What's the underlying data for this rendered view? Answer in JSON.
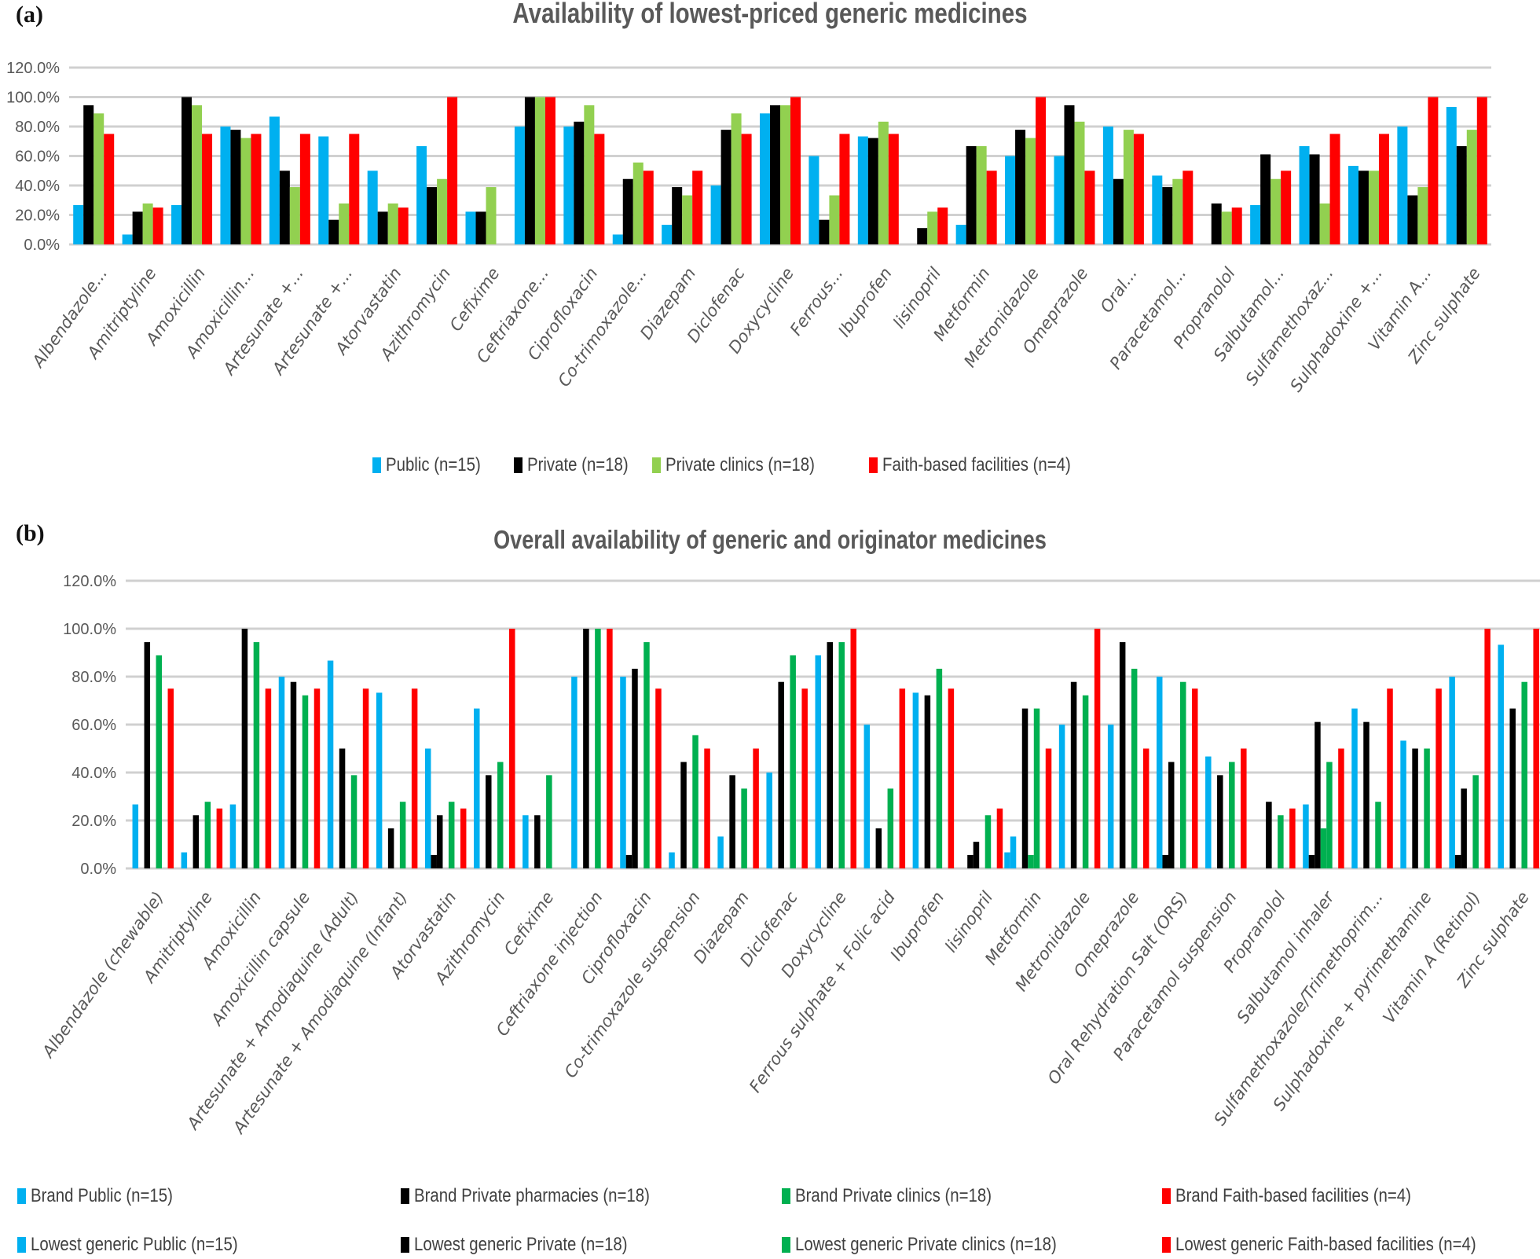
{
  "panels": {
    "a_label": "(a)",
    "b_label": "(b)"
  },
  "chart_data": [
    {
      "type": "bar",
      "title": "Availability of lowest-priced generic medicines",
      "xlabel": "",
      "ylabel": "",
      "ylim": [
        0,
        120
      ],
      "yticks": [
        "0.0%",
        "20.0%",
        "40.0%",
        "60.0%",
        "80.0%",
        "100.0%",
        "120.0%"
      ],
      "grid": true,
      "legend_position": "bottom",
      "categories": [
        "Albendazole...",
        "Amitriptyline",
        "Amoxicillin",
        "Amoxicillin...",
        "Artesunate +...",
        "Artesunate +...",
        "Atorvastatin",
        "Azithromycin",
        "Cefixime",
        "Ceftriaxone...",
        "Ciprofloxacin",
        "Co-trimoxazole...",
        "Diazepam",
        "Diclofenac",
        "Doxycycline",
        "Ferrous...",
        "Ibuprofen",
        "lisinopril",
        "Metformin",
        "Metronidazole",
        "Omeprazole",
        "Oral...",
        "Paracetamol...",
        "Propranolol",
        "Salbutamol...",
        "Sulfamethoxaz...",
        "Sulphadoxine +...",
        "Vitamin A...",
        "Zinc sulphate"
      ],
      "series": [
        {
          "name": "Public (n=15)",
          "color": "#00b0f0",
          "values": [
            26.7,
            6.7,
            26.7,
            80,
            86.7,
            73.3,
            50,
            66.7,
            22.2,
            80,
            80,
            6.7,
            13.3,
            40,
            88.9,
            60,
            73.3,
            0,
            13.3,
            60,
            60,
            80,
            46.7,
            0,
            26.7,
            66.7,
            53.3,
            80,
            93.3
          ]
        },
        {
          "name": "Private (n=18)",
          "color": "#000000",
          "values": [
            94.4,
            22.2,
            100,
            77.8,
            50,
            16.7,
            22.2,
            38.9,
            22.2,
            100,
            83.3,
            44.4,
            38.9,
            77.8,
            94.4,
            16.7,
            72.2,
            11.1,
            66.7,
            77.8,
            94.4,
            44.4,
            38.9,
            27.8,
            61.1,
            61.1,
            50,
            33.3,
            66.7
          ]
        },
        {
          "name": "Private clinics (n=18)",
          "color": "#92d050",
          "values": [
            88.9,
            27.8,
            94.4,
            72.2,
            38.9,
            27.8,
            27.8,
            44.4,
            38.9,
            100,
            94.4,
            55.6,
            33.3,
            88.9,
            94.4,
            33.3,
            83.3,
            22.2,
            66.7,
            72.2,
            83.3,
            77.8,
            44.4,
            22.2,
            44.4,
            27.8,
            50,
            38.9,
            77.8
          ]
        },
        {
          "name": "Faith-based facilities (n=4)",
          "color": "#ff0000",
          "values": [
            75,
            25,
            75,
            75,
            75,
            75,
            25,
            100,
            0,
            100,
            75,
            50,
            50,
            75,
            100,
            75,
            75,
            25,
            50,
            100,
            50,
            75,
            50,
            25,
            50,
            75,
            75,
            100,
            100
          ]
        }
      ]
    },
    {
      "type": "bar",
      "title": "Overall availability of generic and originator medicines",
      "xlabel": "",
      "ylabel": "",
      "ylim": [
        0,
        120
      ],
      "yticks": [
        "0.0%",
        "20.0%",
        "40.0%",
        "60.0%",
        "80.0%",
        "100.0%",
        "120.0%"
      ],
      "grid": true,
      "legend_position": "bottom",
      "categories": [
        "Albendazole (chewable)",
        "Amitriptyline",
        "Amoxicillin",
        "Amoxicillin capsule",
        "Artesunate + Amodiaquine (Adult)",
        "Artesunate + Amodiaquine (Infant)",
        "Atorvastatin",
        "Azithromycin",
        "Cefixime",
        "Ceftriaxone injection",
        "Ciprofloxacin",
        "Co-trimoxazole suspension",
        "Diazepam",
        "Diclofenac",
        "Doxycycline",
        "Ferrous sulphate + Folic acid",
        "Ibuprofen",
        "lisinopril",
        "Metformin",
        "Metronidazole",
        "Omeprazole",
        "Oral Rehydration Salt (ORS)",
        "Paracetamol suspension",
        "Propranolol",
        "Salbutamol inhaler",
        "Sulfamethoxazole/Trimethoprim...",
        "Sulphadoxine + pyrimethamine",
        "Vitamin A (Retinol)",
        "Zinc sulphate"
      ],
      "series": [
        {
          "name": "Brand Public (n=15)",
          "color": "#00b0f0",
          "values": [
            0,
            0,
            0,
            0,
            0,
            0,
            0,
            0,
            0,
            0,
            0,
            0,
            0,
            0,
            0,
            0,
            0,
            0,
            6.7,
            0,
            0,
            0,
            0,
            0,
            0,
            0,
            0,
            0,
            0
          ]
        },
        {
          "name": "Brand Private pharmacies (n=18)",
          "color": "#000000",
          "values": [
            0,
            0,
            0,
            0,
            0,
            0,
            5.6,
            0,
            0,
            0,
            5.6,
            0,
            0,
            0,
            0,
            0,
            0,
            5.6,
            0,
            0,
            0,
            5.6,
            0,
            0,
            5.6,
            0,
            0,
            5.6,
            0
          ]
        },
        {
          "name": "Brand Private clinics (n=18)",
          "color": "#00b050",
          "values": [
            0,
            0,
            0,
            0,
            0,
            0,
            0,
            0,
            0,
            0,
            0,
            0,
            0,
            0,
            0,
            0,
            0,
            0,
            5.6,
            0,
            0,
            0,
            0,
            0,
            16.7,
            0,
            0,
            0,
            0
          ]
        },
        {
          "name": "Brand Faith-based facilities (n=4)",
          "color": "#ff0000",
          "values": [
            0,
            0,
            0,
            0,
            0,
            0,
            0,
            0,
            0,
            0,
            0,
            0,
            0,
            0,
            0,
            0,
            0,
            0,
            0,
            0,
            0,
            0,
            0,
            0,
            0,
            0,
            0,
            0,
            0
          ]
        },
        {
          "name": "Lowest generic Public (n=15)",
          "color": "#00b0f0",
          "values": [
            26.7,
            6.7,
            26.7,
            80,
            86.7,
            73.3,
            50,
            66.7,
            22.2,
            80,
            80,
            6.7,
            13.3,
            40,
            88.9,
            60,
            73.3,
            0,
            13.3,
            60,
            60,
            80,
            46.7,
            0,
            26.7,
            66.7,
            53.3,
            80,
            93.3
          ]
        },
        {
          "name": "Lowest generic Private (n=18)",
          "color": "#000000",
          "values": [
            94.4,
            22.2,
            100,
            77.8,
            50,
            16.7,
            22.2,
            38.9,
            22.2,
            100,
            83.3,
            44.4,
            38.9,
            77.8,
            94.4,
            16.7,
            72.2,
            11.1,
            66.7,
            77.8,
            94.4,
            44.4,
            38.9,
            27.8,
            61.1,
            61.1,
            50,
            33.3,
            66.7
          ]
        },
        {
          "name": "Lowest generic Private clinics (n=18)",
          "color": "#00b050",
          "values": [
            88.9,
            27.8,
            94.4,
            72.2,
            38.9,
            27.8,
            27.8,
            44.4,
            38.9,
            100,
            94.4,
            55.6,
            33.3,
            88.9,
            94.4,
            33.3,
            83.3,
            22.2,
            66.7,
            72.2,
            83.3,
            77.8,
            44.4,
            22.2,
            44.4,
            27.8,
            50,
            38.9,
            77.8
          ]
        },
        {
          "name": "Lowest generic Faith-based facilities (n=4)",
          "color": "#ff0000",
          "values": [
            75,
            25,
            75,
            75,
            75,
            75,
            25,
            100,
            0,
            100,
            75,
            50,
            50,
            75,
            100,
            75,
            75,
            25,
            50,
            100,
            50,
            75,
            50,
            25,
            50,
            75,
            75,
            100,
            100
          ]
        }
      ]
    }
  ]
}
